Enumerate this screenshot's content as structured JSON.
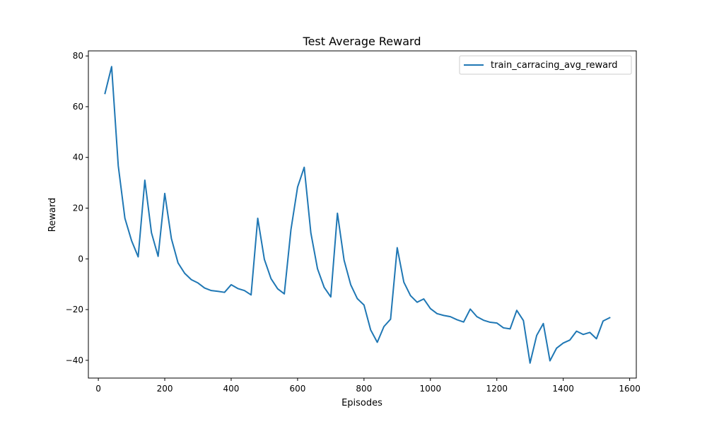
{
  "chart_data": {
    "type": "line",
    "title": "Test Average Reward",
    "xlabel": "Episodes",
    "ylabel": "Reward",
    "xlim": [
      -30,
      1620
    ],
    "ylim": [
      -47,
      82
    ],
    "xticks": [
      0,
      200,
      400,
      600,
      800,
      1000,
      1200,
      1400,
      1600
    ],
    "yticks": [
      -40,
      -20,
      0,
      20,
      40,
      60,
      80
    ],
    "grid": false,
    "legend_position": "top-right",
    "colors": {
      "series": "#1f77b4"
    },
    "series": [
      {
        "name": "train_carracing_avg_reward",
        "x": [
          20,
          40,
          60,
          80,
          100,
          120,
          140,
          160,
          180,
          200,
          220,
          240,
          260,
          280,
          300,
          320,
          340,
          360,
          380,
          400,
          420,
          440,
          460,
          480,
          500,
          520,
          540,
          560,
          580,
          600,
          620,
          640,
          660,
          680,
          700,
          720,
          740,
          760,
          780,
          800,
          820,
          840,
          860,
          880,
          900,
          920,
          940,
          960,
          980,
          1000,
          1020,
          1040,
          1060,
          1080,
          1100,
          1120,
          1140,
          1160,
          1180,
          1200,
          1220,
          1240,
          1260,
          1280,
          1300,
          1320,
          1340,
          1360,
          1380,
          1400,
          1420,
          1440,
          1460,
          1480,
          1500,
          1520,
          1540
        ],
        "y": [
          65.2,
          75.8,
          36.7,
          16.0,
          7.2,
          0.8,
          31.0,
          10.3,
          1.0,
          25.8,
          8.0,
          -1.6,
          -5.7,
          -8.2,
          -9.5,
          -11.5,
          -12.5,
          -12.8,
          -13.2,
          -10.2,
          -11.7,
          -12.5,
          -14.2,
          16.0,
          -0.2,
          -7.8,
          -11.8,
          -13.8,
          11.5,
          28.3,
          36.1,
          10.2,
          -3.9,
          -11.2,
          -15.0,
          18.0,
          -0.5,
          -10.2,
          -15.7,
          -18.2,
          -28.0,
          -32.9,
          -26.7,
          -23.8,
          4.4,
          -9.2,
          -14.5,
          -17.1,
          -15.8,
          -19.6,
          -21.6,
          -22.3,
          -22.8,
          -24.0,
          -24.9,
          -19.8,
          -22.8,
          -24.2,
          -25.0,
          -25.3,
          -27.2,
          -27.6,
          -20.3,
          -24.3,
          -41.1,
          -30.2,
          -25.5,
          -40.2,
          -35.2,
          -33.2,
          -32.0,
          -28.5,
          -29.8,
          -29.0,
          -31.5,
          -24.5,
          -23.2
        ]
      }
    ]
  }
}
